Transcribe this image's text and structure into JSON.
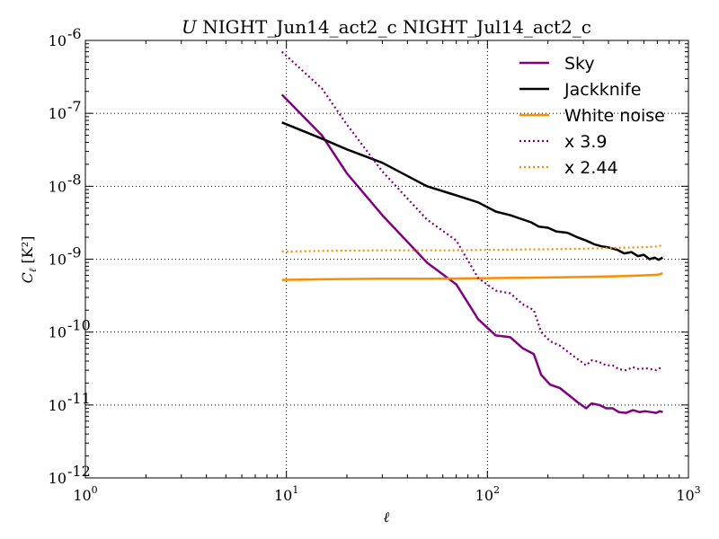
{
  "chart_data": {
    "type": "line",
    "title_italic": "U",
    "title": "NIGHT_Jun14_act2_c NIGHT_Jul14_act2_c",
    "xlabel": "ℓ",
    "ylabel": "C",
    "ylabel_subscript": "ℓ",
    "ylabel_unit": "[K²]",
    "x_scale": "log",
    "y_scale": "log",
    "xlim": [
      1,
      1000
    ],
    "ylim": [
      1e-12,
      1e-06
    ],
    "x_ticks": [
      {
        "base": "10",
        "exp": "0"
      },
      {
        "base": "10",
        "exp": "1"
      },
      {
        "base": "10",
        "exp": "2"
      },
      {
        "base": "10",
        "exp": "3"
      }
    ],
    "y_ticks": [
      {
        "base": "10",
        "exp": "-12"
      },
      {
        "base": "10",
        "exp": "-11"
      },
      {
        "base": "10",
        "exp": "-10"
      },
      {
        "base": "10",
        "exp": "-9"
      },
      {
        "base": "10",
        "exp": "-8"
      },
      {
        "base": "10",
        "exp": "-7"
      },
      {
        "base": "10",
        "exp": "-6"
      }
    ],
    "grid": true,
    "legend_position": "top-right",
    "series": [
      {
        "name": "Sky",
        "color": "#800080",
        "style": "solid",
        "points": [
          [
            9.5,
            1.8e-07
          ],
          [
            15,
            5e-08
          ],
          [
            20,
            1.5e-08
          ],
          [
            30,
            4e-09
          ],
          [
            50,
            9e-10
          ],
          [
            70,
            4.5e-10
          ],
          [
            90,
            1.5e-10
          ],
          [
            110,
            9e-11
          ],
          [
            130,
            8.5e-11
          ],
          [
            150,
            6e-11
          ],
          [
            170,
            5e-11
          ],
          [
            185,
            2.6e-11
          ],
          [
            205,
            1.9e-11
          ],
          [
            230,
            1.7e-11
          ],
          [
            260,
            1.3e-11
          ],
          [
            280,
            1.1e-11
          ],
          [
            310,
            9e-12
          ],
          [
            330,
            1.05e-11
          ],
          [
            360,
            1e-11
          ],
          [
            390,
            9e-12
          ],
          [
            420,
            9e-12
          ],
          [
            450,
            8e-12
          ],
          [
            490,
            7.8e-12
          ],
          [
            530,
            8.5e-12
          ],
          [
            570,
            8e-12
          ],
          [
            610,
            8.2e-12
          ],
          [
            650,
            8e-12
          ],
          [
            690,
            7.8e-12
          ],
          [
            720,
            8.2e-12
          ],
          [
            745,
            8e-12
          ]
        ]
      },
      {
        "name": "Jackknife",
        "color": "#000000",
        "style": "solid",
        "points": [
          [
            9.5,
            7.5e-08
          ],
          [
            15,
            4.5e-08
          ],
          [
            20,
            3.2e-08
          ],
          [
            30,
            2.1e-08
          ],
          [
            50,
            1e-08
          ],
          [
            70,
            7.5e-09
          ],
          [
            90,
            6e-09
          ],
          [
            110,
            4.5e-09
          ],
          [
            130,
            4e-09
          ],
          [
            150,
            3.5e-09
          ],
          [
            165,
            3.2e-09
          ],
          [
            180,
            2.8e-09
          ],
          [
            200,
            2.7e-09
          ],
          [
            220,
            2.4e-09
          ],
          [
            250,
            2.3e-09
          ],
          [
            280,
            2e-09
          ],
          [
            310,
            1.8e-09
          ],
          [
            340,
            1.6e-09
          ],
          [
            370,
            1.5e-09
          ],
          [
            400,
            1.45e-09
          ],
          [
            440,
            1.35e-09
          ],
          [
            480,
            1.2e-09
          ],
          [
            520,
            1.25e-09
          ],
          [
            560,
            1.1e-09
          ],
          [
            600,
            1.15e-09
          ],
          [
            640,
            1e-09
          ],
          [
            680,
            1.05e-09
          ],
          [
            710,
            9.8e-10
          ],
          [
            745,
            1.05e-09
          ]
        ]
      },
      {
        "name": "White noise",
        "color": "#ff8c00",
        "style": "solid",
        "points": [
          [
            9.5,
            5.2e-10
          ],
          [
            15,
            5.3e-10
          ],
          [
            30,
            5.4e-10
          ],
          [
            60,
            5.4e-10
          ],
          [
            100,
            5.5e-10
          ],
          [
            200,
            5.6e-10
          ],
          [
            300,
            5.7e-10
          ],
          [
            400,
            5.8e-10
          ],
          [
            500,
            5.9e-10
          ],
          [
            600,
            6e-10
          ],
          [
            700,
            6.1e-10
          ],
          [
            745,
            6.4e-10
          ]
        ]
      },
      {
        "name": "x 3.9",
        "color": "#800080",
        "style": "dotted",
        "points": [
          [
            9.5,
            7e-07
          ],
          [
            15,
            2.2e-07
          ],
          [
            20,
            7e-08
          ],
          [
            30,
            1.6e-08
          ],
          [
            50,
            3.5e-09
          ],
          [
            70,
            1.8e-09
          ],
          [
            90,
            5.5e-10
          ],
          [
            110,
            3.7e-10
          ],
          [
            130,
            3.4e-10
          ],
          [
            150,
            2.4e-10
          ],
          [
            170,
            2e-10
          ],
          [
            185,
            1e-10
          ],
          [
            205,
            7.5e-11
          ],
          [
            230,
            6.5e-11
          ],
          [
            260,
            5e-11
          ],
          [
            280,
            4.3e-11
          ],
          [
            310,
            3.5e-11
          ],
          [
            330,
            4.1e-11
          ],
          [
            360,
            3.9e-11
          ],
          [
            390,
            3.5e-11
          ],
          [
            420,
            3.5e-11
          ],
          [
            450,
            3.1e-11
          ],
          [
            490,
            3e-11
          ],
          [
            530,
            3.3e-11
          ],
          [
            570,
            3.1e-11
          ],
          [
            610,
            3.2e-11
          ],
          [
            650,
            3.1e-11
          ],
          [
            690,
            3e-11
          ],
          [
            720,
            3.2e-11
          ],
          [
            745,
            3.1e-11
          ]
        ]
      },
      {
        "name": "x 2.44",
        "color": "#ff8c00",
        "style": "dotted",
        "points": [
          [
            9.5,
            1.27e-09
          ],
          [
            15,
            1.3e-09
          ],
          [
            30,
            1.32e-09
          ],
          [
            60,
            1.32e-09
          ],
          [
            100,
            1.34e-09
          ],
          [
            200,
            1.37e-09
          ],
          [
            300,
            1.39e-09
          ],
          [
            400,
            1.42e-09
          ],
          [
            500,
            1.44e-09
          ],
          [
            600,
            1.46e-09
          ],
          [
            700,
            1.49e-09
          ],
          [
            745,
            1.56e-09
          ]
        ]
      }
    ]
  }
}
